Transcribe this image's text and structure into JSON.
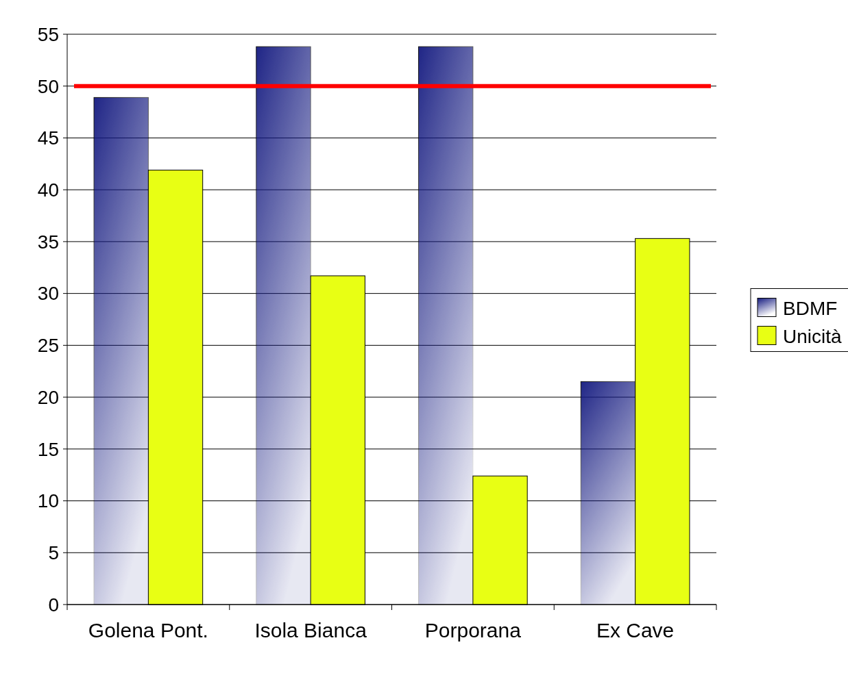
{
  "chart_data": {
    "type": "bar",
    "categories": [
      "Golena Pont.",
      "Isola Bianca",
      "Porporana",
      "Ex Cave"
    ],
    "series": [
      {
        "name": "BDMF",
        "color": "#141a80",
        "values": [
          48.9,
          53.8,
          53.8,
          21.5
        ]
      },
      {
        "name": "Unicità",
        "color": "#e8ff14",
        "values": [
          41.9,
          31.7,
          12.4,
          35.3
        ]
      }
    ],
    "ylim": [
      0,
      55
    ],
    "yticks": [
      0,
      5,
      10,
      15,
      20,
      25,
      30,
      35,
      40,
      45,
      50,
      55
    ],
    "grid": "y",
    "legend": "right",
    "ref_lines": [
      {
        "axis": "y",
        "value": 50,
        "color": "#ff0000"
      }
    ]
  }
}
